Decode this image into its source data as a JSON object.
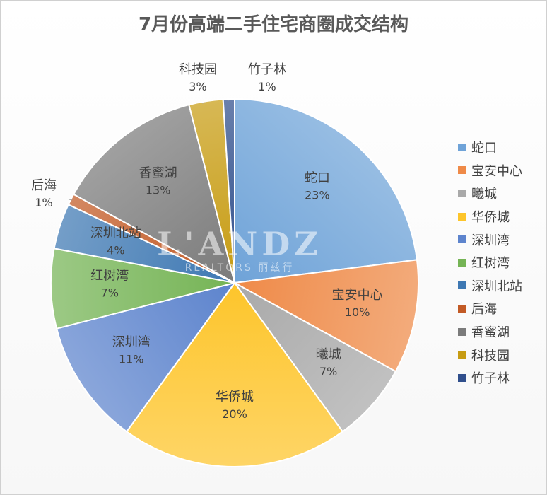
{
  "chart_data": {
    "type": "pie",
    "title": "7月份高端二手住宅商圈成交结构",
    "categories": [
      "蛇口",
      "宝安中心",
      "曦城",
      "华侨城",
      "深圳湾",
      "红树湾",
      "深圳北站",
      "后海",
      "香蜜湖",
      "科技园",
      "竹子林"
    ],
    "values": [
      23,
      10,
      7,
      20,
      11,
      7,
      4,
      1,
      13,
      3,
      1
    ],
    "value_labels": [
      "23%",
      "10%",
      "7%",
      "20%",
      "11%",
      "7%",
      "4%",
      "1%",
      "13%",
      "3%",
      "1%"
    ],
    "colors": [
      "#6fa3d8",
      "#ef8a48",
      "#a9a9a9",
      "#fdc52b",
      "#5d84cd",
      "#75b455",
      "#3e78b3",
      "#c25a25",
      "#7b7b7b",
      "#c79c13",
      "#304f8c"
    ],
    "legend_position": "right",
    "start_angle": "top, clockwise"
  },
  "watermark": {
    "main": "L'ANDZ",
    "sub": "REALTORS 丽兹行"
  }
}
